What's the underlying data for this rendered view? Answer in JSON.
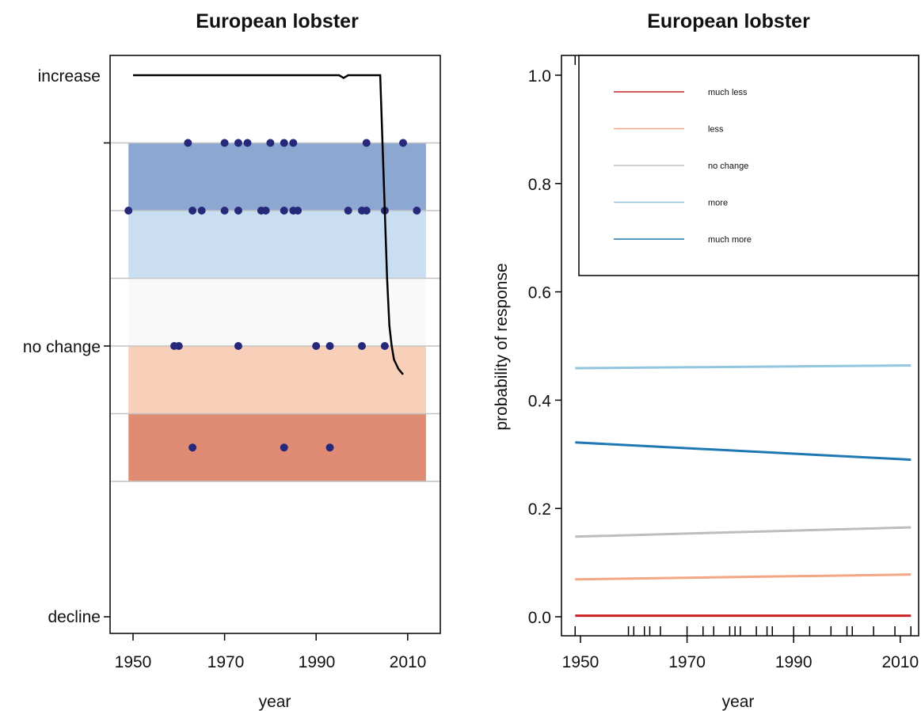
{
  "chart_data": [
    {
      "type": "scatter",
      "title": "European lobster",
      "xlabel": "year",
      "ylabel": "",
      "xlim": [
        1948,
        2014
      ],
      "xticks": [
        "1950",
        "1970",
        "1990",
        "2010"
      ],
      "ylevels": [
        "decline",
        "no change",
        "increase"
      ],
      "bands": [
        {
          "level": "decline",
          "from": -1.0,
          "to": -0.5,
          "color": "#e08c75"
        },
        {
          "level": "less",
          "from": -0.5,
          "to": 0.0,
          "color": "#f8d0ba"
        },
        {
          "level": "no change",
          "from": 0.0,
          "to": 0.5,
          "color": "#f9f9f9"
        },
        {
          "level": "more",
          "from": 0.5,
          "to": 1.0,
          "color": "#c9def0"
        },
        {
          "level": "increase",
          "from": 1.0,
          "to": 1.5,
          "color": "#8ba7d2"
        }
      ],
      "points": [
        {
          "x": 1962,
          "y": 1.5
        },
        {
          "x": 1970,
          "y": 1.5
        },
        {
          "x": 1973,
          "y": 1.5
        },
        {
          "x": 1975,
          "y": 1.5
        },
        {
          "x": 1980,
          "y": 1.5
        },
        {
          "x": 1983,
          "y": 1.5
        },
        {
          "x": 1985,
          "y": 1.5
        },
        {
          "x": 2001,
          "y": 1.5
        },
        {
          "x": 2009,
          "y": 1.5
        },
        {
          "x": 1949,
          "y": 1.0
        },
        {
          "x": 1963,
          "y": 1.0
        },
        {
          "x": 1965,
          "y": 1.0
        },
        {
          "x": 1970,
          "y": 1.0
        },
        {
          "x": 1973,
          "y": 1.0
        },
        {
          "x": 1978,
          "y": 1.0
        },
        {
          "x": 1979,
          "y": 1.0
        },
        {
          "x": 1983,
          "y": 1.0
        },
        {
          "x": 1985,
          "y": 1.0
        },
        {
          "x": 1986,
          "y": 1.0
        },
        {
          "x": 1997,
          "y": 1.0
        },
        {
          "x": 2000,
          "y": 1.0
        },
        {
          "x": 2001,
          "y": 1.0
        },
        {
          "x": 2005,
          "y": 1.0
        },
        {
          "x": 2012,
          "y": 1.0
        },
        {
          "x": 1959,
          "y": 0.0
        },
        {
          "x": 1960,
          "y": 0.0
        },
        {
          "x": 1973,
          "y": 0.0
        },
        {
          "x": 1990,
          "y": 0.0
        },
        {
          "x": 1993,
          "y": 0.0
        },
        {
          "x": 2000,
          "y": 0.0
        },
        {
          "x": 2005,
          "y": 0.0
        },
        {
          "x": 1963,
          "y": -0.75
        },
        {
          "x": 1983,
          "y": -0.75
        },
        {
          "x": 1993,
          "y": -0.75
        }
      ],
      "trend": {
        "x": [
          1950,
          1995,
          1996,
          1997,
          2004,
          2004.5,
          2005,
          2005.5,
          2006,
          2006.5,
          2007,
          2008,
          2009
        ],
        "y": [
          2.0,
          2.0,
          1.98,
          2.0,
          2.0,
          1.5,
          1.0,
          0.5,
          0.15,
          0.0,
          -0.1,
          -0.17,
          -0.21
        ]
      }
    },
    {
      "type": "line",
      "title": "European lobster",
      "xlabel": "year",
      "ylabel": "probability of response",
      "xlim": [
        1948,
        2014
      ],
      "ylim": [
        -0.04,
        1.04
      ],
      "xticks": [
        "1950",
        "1970",
        "1990",
        "2010"
      ],
      "yticks": [
        "0.0",
        "0.2",
        "0.4",
        "0.6",
        "0.8",
        "1.0"
      ],
      "rug_years": [
        1949,
        1959,
        1960,
        1962,
        1963,
        1965,
        1970,
        1973,
        1975,
        1978,
        1979,
        1980,
        1983,
        1985,
        1986,
        1990,
        1993,
        1997,
        2000,
        2001,
        2005,
        2009,
        2012
      ],
      "legend_position": "top-right",
      "series": [
        {
          "name": "much less",
          "color": "#cc2222",
          "x": [
            1949,
            2012
          ],
          "values": [
            0.002,
            0.002
          ]
        },
        {
          "name": "less",
          "color": "#f4a582",
          "x": [
            1949,
            2012
          ],
          "values": [
            0.069,
            0.078
          ]
        },
        {
          "name": "no change",
          "color": "#bdbdbd",
          "x": [
            1949,
            2012
          ],
          "values": [
            0.148,
            0.165
          ]
        },
        {
          "name": "more",
          "color": "#92c5de",
          "x": [
            1949,
            2012
          ],
          "values": [
            0.459,
            0.464
          ]
        },
        {
          "name": "much more",
          "color": "#1f78b4",
          "x": [
            1949,
            2012
          ],
          "values": [
            0.322,
            0.29
          ]
        }
      ]
    }
  ]
}
